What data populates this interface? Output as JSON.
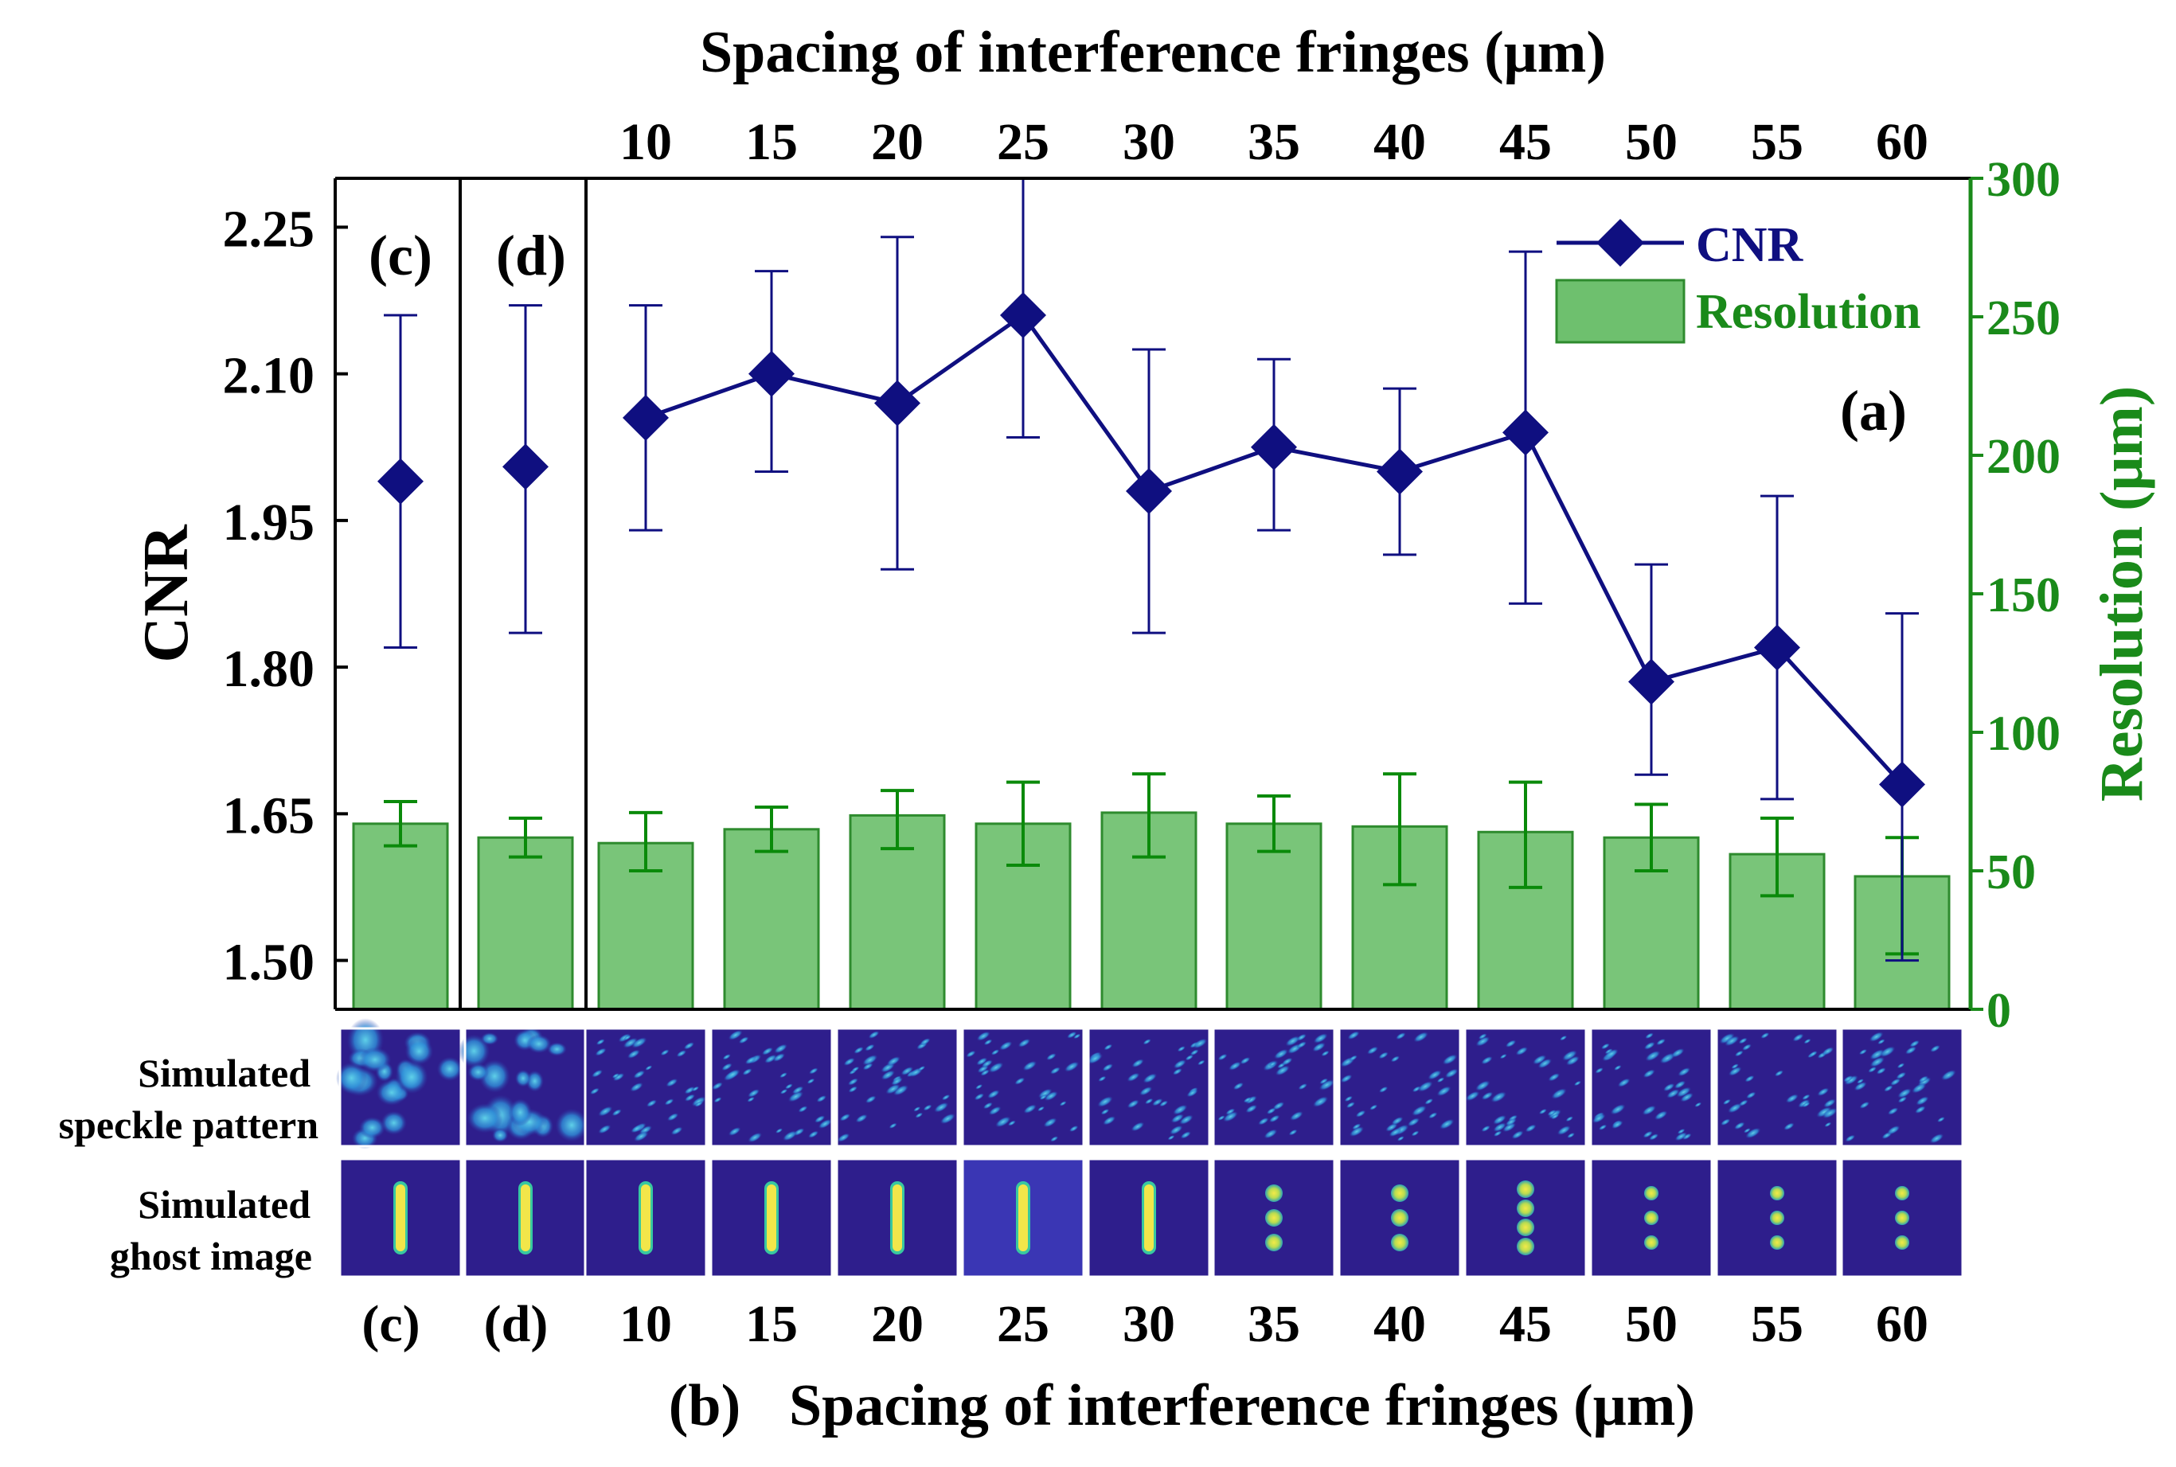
{
  "chart_data": {
    "type": "bar+line",
    "top_axis_title": "Spacing of interference fringes (μm)",
    "bottom_axis_title": "Spacing of interference fringes (μm)",
    "bottom_axis_prefix": "(b)",
    "panel_labels": {
      "a": "(a)",
      "c": "(c)",
      "d": "(d)"
    },
    "left_axis": {
      "label": "CNR",
      "ylim": [
        1.45,
        2.3
      ],
      "ticks": [
        "1.50",
        "1.65",
        "1.80",
        "1.95",
        "2.10",
        "2.25"
      ]
    },
    "right_axis": {
      "label": "Resolution (μm)",
      "ylim": [
        0,
        300
      ],
      "ticks": [
        "0",
        "50",
        "100",
        "150",
        "200",
        "250",
        "300"
      ]
    },
    "categories": [
      "(c)",
      "(d)",
      "10",
      "15",
      "20",
      "25",
      "30",
      "35",
      "40",
      "45",
      "50",
      "55",
      "60"
    ],
    "top_tick_labels": [
      "10",
      "15",
      "20",
      "25",
      "30",
      "35",
      "40",
      "45",
      "50",
      "55",
      "60"
    ],
    "series": [
      {
        "name": "CNR",
        "axis": "left",
        "style": "line-diamond",
        "color": "#0f0f80",
        "values": [
          1.99,
          2.005,
          2.055,
          2.1,
          2.07,
          2.16,
          1.98,
          2.025,
          2.0,
          2.04,
          1.785,
          1.82,
          1.68
        ],
        "err_low": [
          1.82,
          1.835,
          1.94,
          2.0,
          1.9,
          2.035,
          1.835,
          1.94,
          1.915,
          1.865,
          1.69,
          1.665,
          1.5
        ],
        "err_high": [
          2.16,
          2.17,
          2.17,
          2.205,
          2.24,
          2.3,
          2.125,
          2.115,
          2.085,
          2.225,
          1.905,
          1.975,
          1.855
        ],
        "connected_from_index": 2
      },
      {
        "name": "Resolution",
        "axis": "right",
        "style": "bar",
        "color": "#6ec06e",
        "values": [
          67,
          62,
          60,
          65,
          70,
          67,
          71,
          67,
          66,
          64,
          62,
          56,
          48
        ],
        "err_low": [
          59,
          55,
          50,
          57,
          58,
          52,
          55,
          57,
          45,
          44,
          50,
          41,
          20
        ],
        "err_high": [
          75,
          69,
          71,
          73,
          79,
          82,
          85,
          77,
          85,
          82,
          74,
          69,
          62
        ]
      }
    ],
    "legend": {
      "position": "top-right",
      "entries": [
        "CNR",
        "Resolution"
      ]
    },
    "image_rows": [
      "Simulated speckle pattern",
      "Simulated ghost image"
    ],
    "image_row_labels": [
      [
        "Simulated",
        "speckle pattern"
      ],
      [
        "Simulated",
        "ghost image"
      ]
    ],
    "ghost_dot_counts": [
      0,
      0,
      0,
      0,
      0,
      0,
      0,
      3,
      3,
      4,
      3,
      3,
      3
    ]
  },
  "colors": {
    "cnr": "#0f0f80",
    "resolution_fill": "#6ec06e",
    "resolution_edge": "#2e8b2e",
    "resolution_err": "#0a8a0a",
    "right_axis": "#1a8a1a",
    "image_bg": "#2e1e8c",
    "speckle_blob": "#2f9ad8",
    "ghost_core": "#f2e64a",
    "ghost_edge": "#38c8a0"
  }
}
